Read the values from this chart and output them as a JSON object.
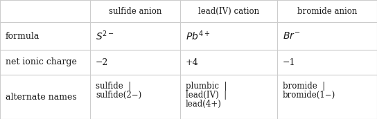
{
  "col_headers": [
    "",
    "sulfide anion",
    "lead(IV) cation",
    "bromide anion"
  ],
  "row_headers": [
    "formula",
    "net ionic charge",
    "alternate names"
  ],
  "formulas": [
    "$S^{2-}$",
    "$Pb^{4+}$",
    "$Br^{-}$"
  ],
  "charges": [
    "−2",
    "+4",
    "−1"
  ],
  "alt_names_col1": [
    "sulfide  |",
    "sulfide(2−)"
  ],
  "alt_names_col2": [
    "plumbic  |",
    "lead(IV)  |",
    "lead(4+)"
  ],
  "alt_names_col3": [
    "bromide  |",
    "bromide(1−)"
  ],
  "bg_color": "#ffffff",
  "line_color": "#cccccc",
  "text_color": "#1a1a1a",
  "header_font_size": 8.5,
  "body_font_size": 9,
  "formula_font_size": 10
}
